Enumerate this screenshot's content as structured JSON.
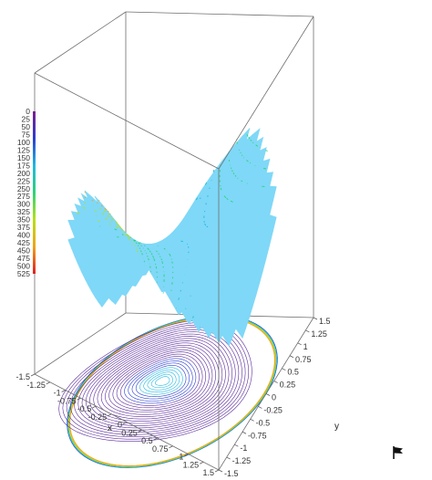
{
  "chart_data": {
    "type": "surface3d",
    "title": "",
    "xlabel": "x",
    "ylabel": "y",
    "zlabel": "",
    "x_ticks": [
      "-1.5",
      "-1.25",
      "-1",
      "-0.75",
      "-0.5",
      "-0.25",
      "0",
      "0.25",
      "0.5",
      "0.75",
      "1",
      "1.25",
      "1.5"
    ],
    "y_ticks": [
      "-1.5",
      "-1.25",
      "-1",
      "-0.75",
      "-0.5",
      "-0.25",
      "0",
      "0.25",
      "0.5",
      "0.75",
      "1",
      "1.25",
      "1.5"
    ],
    "x_range": [
      -1.5,
      1.5
    ],
    "y_range": [
      -1.5,
      1.5
    ],
    "domain": "disk of radius 1.5",
    "surface_color": "#7fd8f7",
    "contour_levels": [
      "0",
      "25",
      "50",
      "75",
      "100",
      "125",
      "150",
      "175",
      "200",
      "225",
      "250",
      "275",
      "300",
      "325",
      "350",
      "375",
      "400",
      "425",
      "450",
      "475",
      "500",
      "525"
    ],
    "colorbar_range": [
      0,
      525
    ],
    "colorbar_colors": [
      "#7a1e8f",
      "#2a3cd0",
      "#21b8e0",
      "#2bd37a",
      "#b6e016",
      "#f0a319",
      "#e01f1f"
    ],
    "grid": false,
    "legend": "left colorbar"
  },
  "ui": {
    "flag_icon": "flag-icon"
  }
}
